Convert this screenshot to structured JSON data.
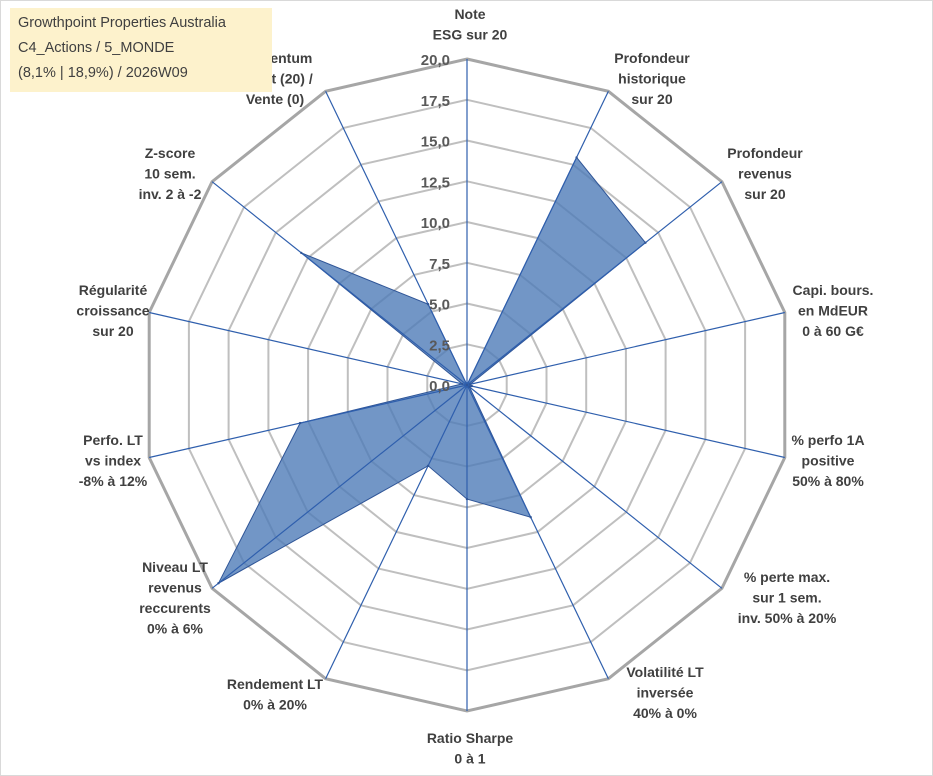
{
  "info": {
    "line1": "Growthpoint Properties Australia",
    "line2": "C4_Actions / 5_MONDE",
    "line3": "(8,1% | 18,9%) / 2026W09"
  },
  "chart_data": {
    "type": "radar",
    "rmin": 0,
    "rmax": 20,
    "ticks": [
      "0,0",
      "2,5",
      "5,0",
      "7,5",
      "10,0",
      "12,5",
      "15,0",
      "17,5",
      "20,0"
    ],
    "axes": [
      [
        "Note",
        "ESG sur 20"
      ],
      [
        "Profondeur",
        "historique",
        "sur 20"
      ],
      [
        "Profondeur",
        "revenus",
        "sur 20"
      ],
      [
        "Capi. bours.",
        "en MdEUR",
        "0 à 60 G€"
      ],
      [
        "% perfo 1A",
        "positive",
        "50% à 80%"
      ],
      [
        "% perte max.",
        "sur 1 sem.",
        "inv. 50% à 20%"
      ],
      [
        "Volatilité LT",
        "inversée",
        "40% à 0%"
      ],
      [
        "Ratio Sharpe",
        "0 à 1"
      ],
      [
        "Rendement LT",
        "0% à 20%"
      ],
      [
        "Niveau LT",
        "revenus",
        "reccurents",
        "0% à 6%"
      ],
      [
        "Perfo. LT",
        "vs index",
        "-8% à 12%"
      ],
      [
        "Régularité",
        "croissance",
        "sur 20"
      ],
      [
        "Z-score",
        "10 sem.",
        "inv. 2 à -2"
      ],
      [
        "Momentum",
        "Achat (20) /",
        "Vente (0)"
      ]
    ],
    "series": [
      {
        "values": [
          0,
          15.5,
          14.0,
          0.2,
          0.3,
          0.2,
          9.0,
          7.0,
          5.5,
          19.5,
          10.5,
          0.3,
          13.0,
          5.5
        ]
      }
    ],
    "grid": true,
    "colors": {
      "fill": "#4f7cb8",
      "fill_opacity": "0.8",
      "stroke": "#2f5597",
      "grid": "#bfbfbf",
      "outer": "#a6a6a6",
      "spoke": "#2f5fad"
    }
  }
}
